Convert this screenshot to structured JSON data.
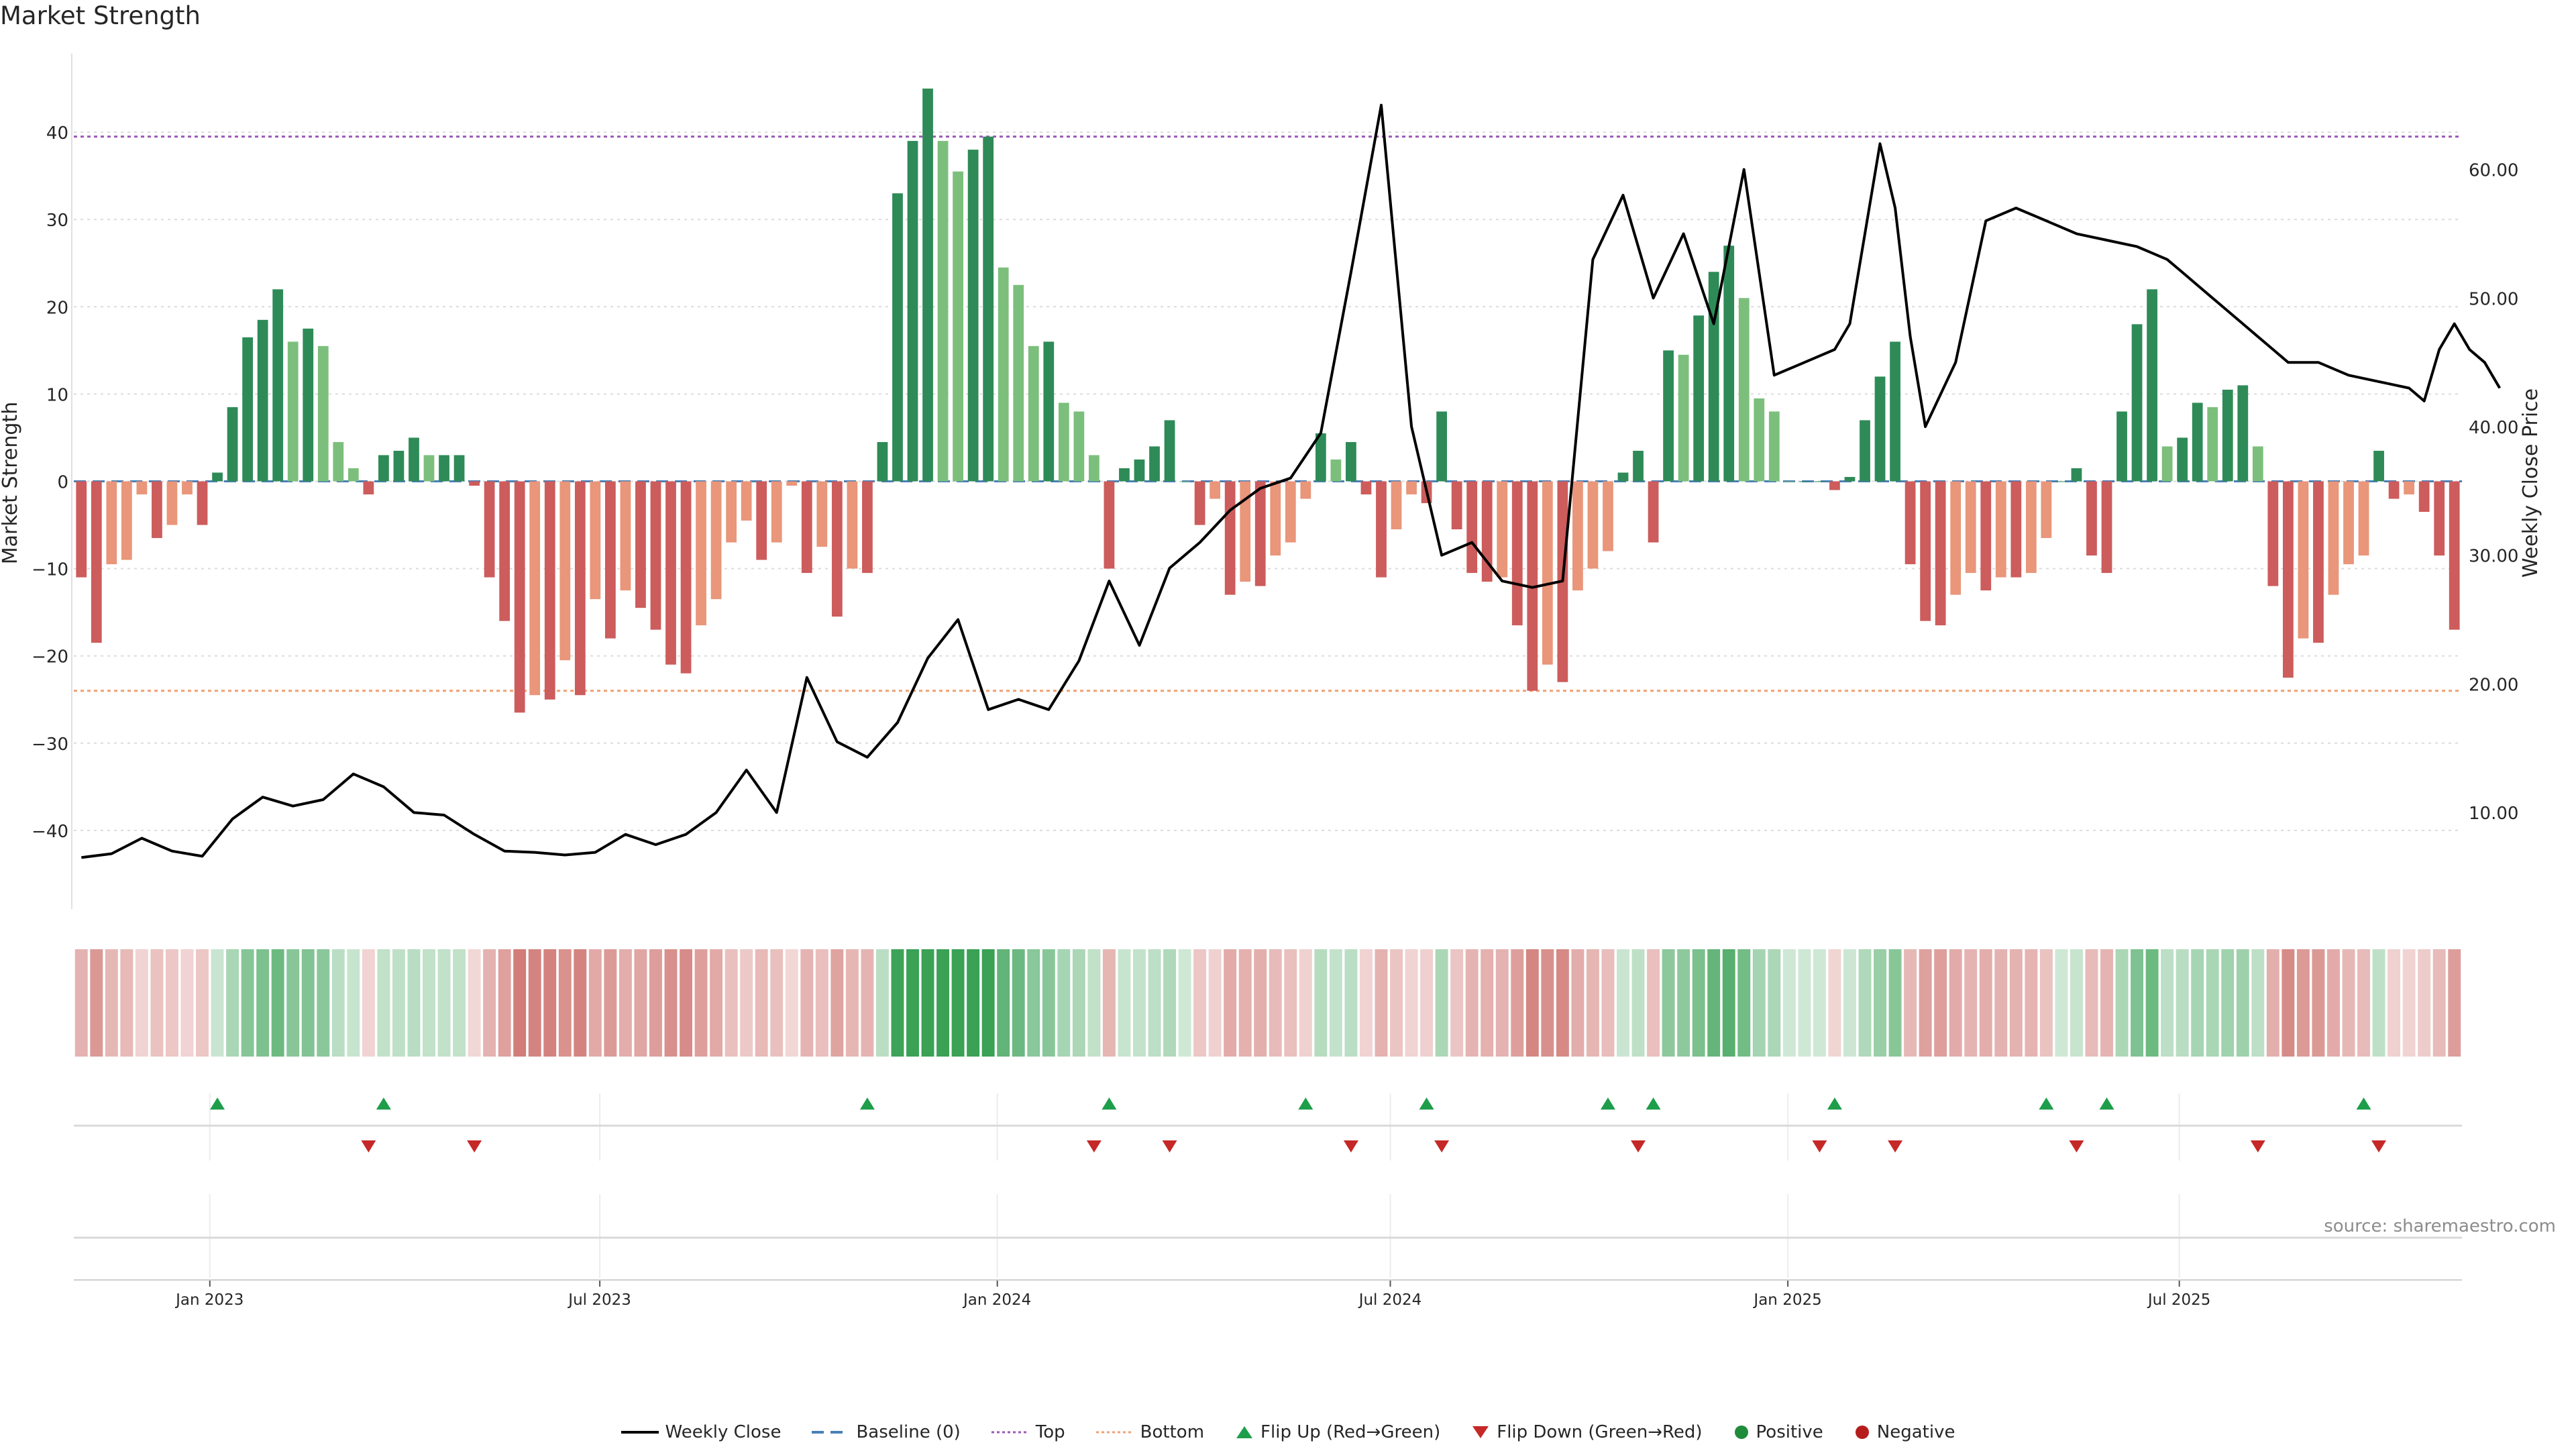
{
  "title": "Market Strength",
  "source": "source: sharemaestro.com",
  "colors": {
    "strong_green": "#2e8b57",
    "light_green": "#7cbf7c",
    "strong_red": "#cd5c5c",
    "light_red": "#e9967a",
    "top_line": "#9b59b6",
    "bottom_line": "#f0a070",
    "baseline": "#4a7fb5",
    "price_line": "#000000",
    "flip_up": "#1e9e4a",
    "flip_down": "#c62828"
  },
  "chart_data": {
    "type": "bar",
    "title": "Market Strength",
    "ylabel": "Market Strength",
    "y2label": "Weekly Close Price",
    "ylim": [
      -49,
      49
    ],
    "y2lim": [
      2.5,
      69
    ],
    "yticks": [
      40,
      30,
      20,
      10,
      0,
      -10,
      -20,
      -30,
      -40
    ],
    "yticklabels": [
      "40",
      "30",
      "20",
      "10",
      "0",
      "−10",
      "−20",
      "−30",
      "−40"
    ],
    "y2ticks": [
      60,
      50,
      40,
      30,
      20,
      10
    ],
    "y2ticklabels": [
      "60.00",
      "50.00",
      "40.00",
      "30.00",
      "20.00",
      "10.00"
    ],
    "x_dates": [
      "Jan 2023",
      "Jul 2023",
      "Jan 2024",
      "Jul 2024",
      "Jan 2025",
      "Jul 2025"
    ],
    "x_date_index": [
      8.5,
      34.3,
      60.6,
      86.6,
      112.9,
      138.8
    ],
    "top_level": 39.5,
    "bottom_level": -24,
    "grid": "horizontal dotted",
    "legend_position": "bottom-center",
    "strength_values": [
      -11,
      -18.5,
      -9.5,
      -9,
      -1.5,
      -6.5,
      -5,
      -1.5,
      -5,
      1,
      8.5,
      16.5,
      18.5,
      22,
      16,
      17.5,
      15.5,
      4.5,
      1.5,
      -1.5,
      3,
      3.5,
      5,
      3,
      3,
      3,
      -0.5,
      -11,
      -16,
      -26.5,
      -24.5,
      -25,
      -20.5,
      -24.5,
      -13.5,
      -18,
      -12.5,
      -14.5,
      -17,
      -21,
      -22,
      -16.5,
      -13.5,
      -7,
      -4.5,
      -9,
      -7,
      -0.5,
      -10.5,
      -7.5,
      -15.5,
      -10,
      -10.5,
      4.5,
      33,
      39,
      45,
      39,
      35.5,
      38,
      39.5,
      24.5,
      22.5,
      15.5,
      16,
      9,
      8,
      3,
      -10,
      1.5,
      2.5,
      4,
      7,
      0,
      -5,
      -2,
      -13,
      -11.5,
      -12,
      -8.5,
      -7,
      -2,
      5.5,
      2.5,
      4.5,
      -1.5,
      -11,
      -5.5,
      -1.5,
      -2.5,
      8,
      -5.5,
      -10.5,
      -11.5,
      -11,
      -16.5,
      -24,
      -21,
      -23,
      -12.5,
      -10,
      -8,
      1,
      3.5,
      -7,
      15,
      14.5,
      19,
      24,
      27,
      21,
      9.5,
      8,
      0,
      0,
      0,
      -1,
      0.5,
      7,
      12,
      16,
      -9.5,
      -16,
      -16.5,
      -13,
      -10.5,
      -12.5,
      -11,
      -11,
      -10.5,
      -6.5,
      0,
      1.5,
      -8.5,
      -10.5,
      8,
      18,
      22,
      4,
      5,
      9,
      8.5,
      10.5,
      11,
      4,
      -12,
      -22.5,
      -18,
      -18.5,
      -13,
      -9.5,
      -8.5,
      3.5,
      -2,
      -1.5,
      -3.5,
      -8.5,
      -17
    ],
    "price_series": {
      "name": "Weekly Close",
      "x_index": [
        0,
        2,
        4,
        6,
        8,
        10,
        12,
        14,
        16,
        18,
        20,
        22,
        24,
        26,
        28,
        30,
        32,
        34,
        36,
        38,
        40,
        42,
        44,
        46,
        48,
        50,
        52,
        54,
        56,
        58,
        60,
        62,
        64,
        66,
        68,
        70,
        72,
        74,
        76,
        78,
        80,
        82,
        84,
        86,
        88,
        90,
        92,
        94,
        96,
        98,
        100,
        102,
        104,
        106,
        108,
        110,
        112,
        114,
        116,
        117,
        118,
        119,
        120,
        121,
        122,
        124,
        126,
        128,
        130,
        132,
        134,
        136,
        137,
        138,
        139,
        140,
        141,
        142,
        143,
        144,
        145,
        146,
        148,
        150,
        152,
        154,
        155,
        156,
        157,
        158,
        159,
        160
      ],
      "values": [
        6.5,
        6.8,
        8,
        7,
        6.6,
        9.5,
        11.2,
        10.5,
        11,
        13,
        12,
        10,
        9.8,
        8.3,
        7,
        6.9,
        6.7,
        6.9,
        8.3,
        7.5,
        8.3,
        10,
        13.3,
        10,
        20.5,
        15.5,
        14.3,
        17,
        22,
        25,
        18,
        18.8,
        18,
        21.8,
        28,
        23,
        29,
        31,
        33.5,
        35.2,
        36,
        39.5,
        52,
        65,
        40,
        30,
        31,
        28,
        27.5,
        28,
        53,
        58,
        50,
        55,
        48,
        60,
        44,
        45,
        46,
        48,
        55,
        62,
        57,
        47,
        40,
        45,
        56,
        57,
        56,
        55,
        54.5,
        54,
        53.5,
        53,
        52,
        51,
        50,
        49,
        48,
        47,
        46,
        45,
        45,
        44,
        43.5,
        43,
        42,
        46,
        48,
        46,
        45,
        43
      ]
    },
    "flip_up_index": [
      9,
      20,
      52,
      68,
      81,
      89,
      101,
      104,
      116,
      130,
      134,
      151
    ],
    "flip_down_index": [
      19,
      26,
      67,
      72,
      84,
      90,
      103,
      115,
      120,
      132,
      144,
      152
    ]
  },
  "legend": {
    "weekly_close": "Weekly Close",
    "baseline": "Baseline (0)",
    "top": "Top",
    "bottom": "Bottom",
    "flip_up": "Flip Up (Red→Green)",
    "flip_down": "Flip Down (Green→Red)",
    "positive": "Positive",
    "negative": "Negative"
  }
}
